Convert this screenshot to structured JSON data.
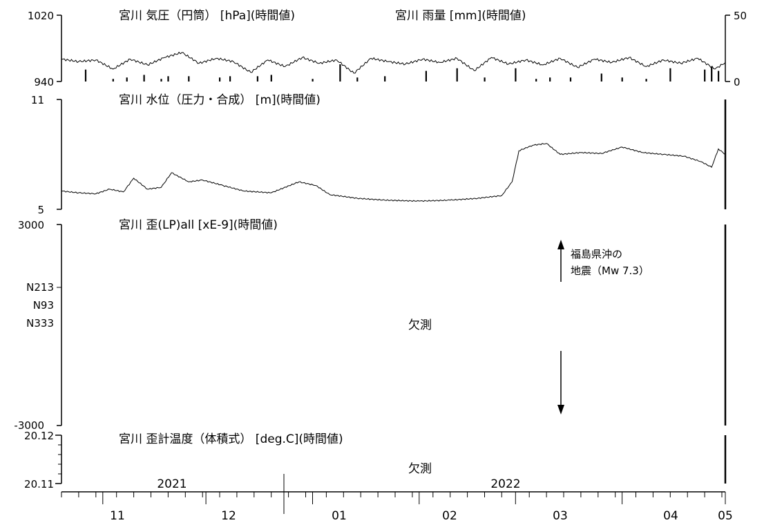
{
  "chart_data": [
    {
      "type": "line",
      "title": "宮川 気圧（円筒） [hPa](時間値)",
      "series": [
        {
          "name": "宮川 気圧（円筒） [hPa](時間値)",
          "x": [
            "2021-10-20",
            "2021-10-25",
            "2021-10-30",
            "2021-11-04",
            "2021-11-09",
            "2021-11-14",
            "2021-11-19",
            "2021-11-24",
            "2021-11-29",
            "2021-12-04",
            "2021-12-09",
            "2021-12-14",
            "2021-12-19",
            "2021-12-24",
            "2021-12-29",
            "2022-01-03",
            "2022-01-08",
            "2022-01-13",
            "2022-01-18",
            "2022-01-23",
            "2022-01-28",
            "2022-02-02",
            "2022-02-07",
            "2022-02-12",
            "2022-02-17",
            "2022-02-22",
            "2022-02-27",
            "2022-03-04",
            "2022-03-09",
            "2022-03-14",
            "2022-03-19",
            "2022-03-24",
            "2022-03-29",
            "2022-04-03",
            "2022-04-08",
            "2022-04-13",
            "2022-04-18",
            "2022-04-23",
            "2022-04-28",
            "2022-05-01"
          ],
          "y": [
            967,
            964,
            966,
            955,
            967,
            960,
            969,
            975,
            962,
            968,
            964,
            951,
            966,
            958,
            969,
            962,
            966,
            950,
            968,
            964,
            961,
            967,
            963,
            968,
            953,
            969,
            961,
            966,
            960,
            968,
            957,
            967,
            963,
            969,
            958,
            966,
            962,
            968,
            955,
            963
          ]
        }
      ],
      "xlim": [
        "2021-10-20",
        "2022-05-01"
      ],
      "ylim": [
        940,
        1020
      ],
      "yticks": [
        "1020",
        "940"
      ]
    },
    {
      "type": "bar",
      "title": "宮川 雨量 [mm](時間値)",
      "x": [
        "2021-10-27",
        "2021-11-04",
        "2021-11-08",
        "2021-11-13",
        "2021-11-18",
        "2021-11-20",
        "2021-11-26",
        "2021-12-05",
        "2021-12-08",
        "2021-12-16",
        "2021-12-20",
        "2022-01-01",
        "2022-01-09",
        "2022-01-14",
        "2022-01-22",
        "2022-02-03",
        "2022-02-12",
        "2022-02-20",
        "2022-03-01",
        "2022-03-07",
        "2022-03-11",
        "2022-03-17",
        "2022-03-26",
        "2022-04-01",
        "2022-04-08",
        "2022-04-15",
        "2022-04-25",
        "2022-04-27",
        "2022-04-29"
      ],
      "values": [
        9,
        2,
        3,
        5,
        2,
        4,
        4,
        3,
        4,
        4,
        5,
        2,
        13,
        3,
        4,
        8,
        10,
        3,
        10,
        2,
        3,
        3,
        6,
        3,
        2,
        10,
        9,
        11,
        8
      ],
      "ylim": [
        0,
        50
      ],
      "yticks": [
        "50",
        "0"
      ]
    },
    {
      "type": "line",
      "title": "宮川 水位（圧力・合成） [m](時間値)",
      "series": [
        {
          "name": "宮川 水位（圧力・合成） [m](時間値)",
          "x": [
            "2021-10-20",
            "2021-10-25",
            "2021-10-30",
            "2021-11-03",
            "2021-11-07",
            "2021-11-10",
            "2021-11-14",
            "2021-11-18",
            "2021-11-21",
            "2021-11-26",
            "2021-11-30",
            "2021-12-06",
            "2021-12-12",
            "2021-12-20",
            "2021-12-28",
            "2022-01-02",
            "2022-01-06",
            "2022-01-14",
            "2022-01-22",
            "2022-02-01",
            "2022-02-10",
            "2022-02-18",
            "2022-02-25",
            "2022-02-28",
            "2022-03-02",
            "2022-03-06",
            "2022-03-10",
            "2022-03-14",
            "2022-03-20",
            "2022-03-26",
            "2022-04-01",
            "2022-04-07",
            "2022-04-13",
            "2022-04-19",
            "2022-04-24",
            "2022-04-27",
            "2022-04-29",
            "2022-05-01"
          ],
          "y": [
            6.0,
            5.9,
            5.85,
            6.1,
            5.95,
            6.7,
            6.1,
            6.2,
            7.0,
            6.5,
            6.6,
            6.3,
            6.0,
            5.9,
            6.5,
            6.3,
            5.8,
            5.6,
            5.5,
            5.45,
            5.5,
            5.6,
            5.75,
            6.5,
            8.2,
            8.5,
            8.6,
            8.0,
            8.1,
            8.05,
            8.4,
            8.1,
            8.0,
            7.9,
            7.6,
            7.3,
            8.3,
            8.0
          ]
        }
      ],
      "xlim": [
        "2021-10-20",
        "2022-05-01"
      ],
      "ylim": [
        5,
        11
      ],
      "yticks": [
        "11",
        "5"
      ]
    },
    {
      "type": "line",
      "title": "宮川 歪(LP)all [xE-9](時間値)",
      "series": [
        {
          "name": "N213",
          "x": [],
          "y": []
        },
        {
          "name": "N93",
          "x": [],
          "y": []
        },
        {
          "name": "N333",
          "x": [],
          "y": []
        }
      ],
      "ylim": [
        -3000,
        3000
      ],
      "yticks": [
        "3000",
        "-3000"
      ],
      "annotations": [
        "欠測",
        "福島県沖の",
        "地震（Mw 7.3）"
      ]
    },
    {
      "type": "line",
      "title": "宮川 歪計温度（体積式） [deg.C](時間値)",
      "series": [
        {
          "name": "宮川 歪計温度（体積式） [deg.C](時間値)",
          "x": [],
          "y": []
        }
      ],
      "ylim": [
        20.11,
        20.12
      ],
      "yticks": [
        "20.12",
        "20.11"
      ],
      "annotations": [
        "欠測"
      ]
    }
  ],
  "xaxis": {
    "months": [
      "11",
      "12",
      "01",
      "02",
      "03",
      "04",
      "05"
    ],
    "years": [
      "2021",
      "2022"
    ]
  }
}
